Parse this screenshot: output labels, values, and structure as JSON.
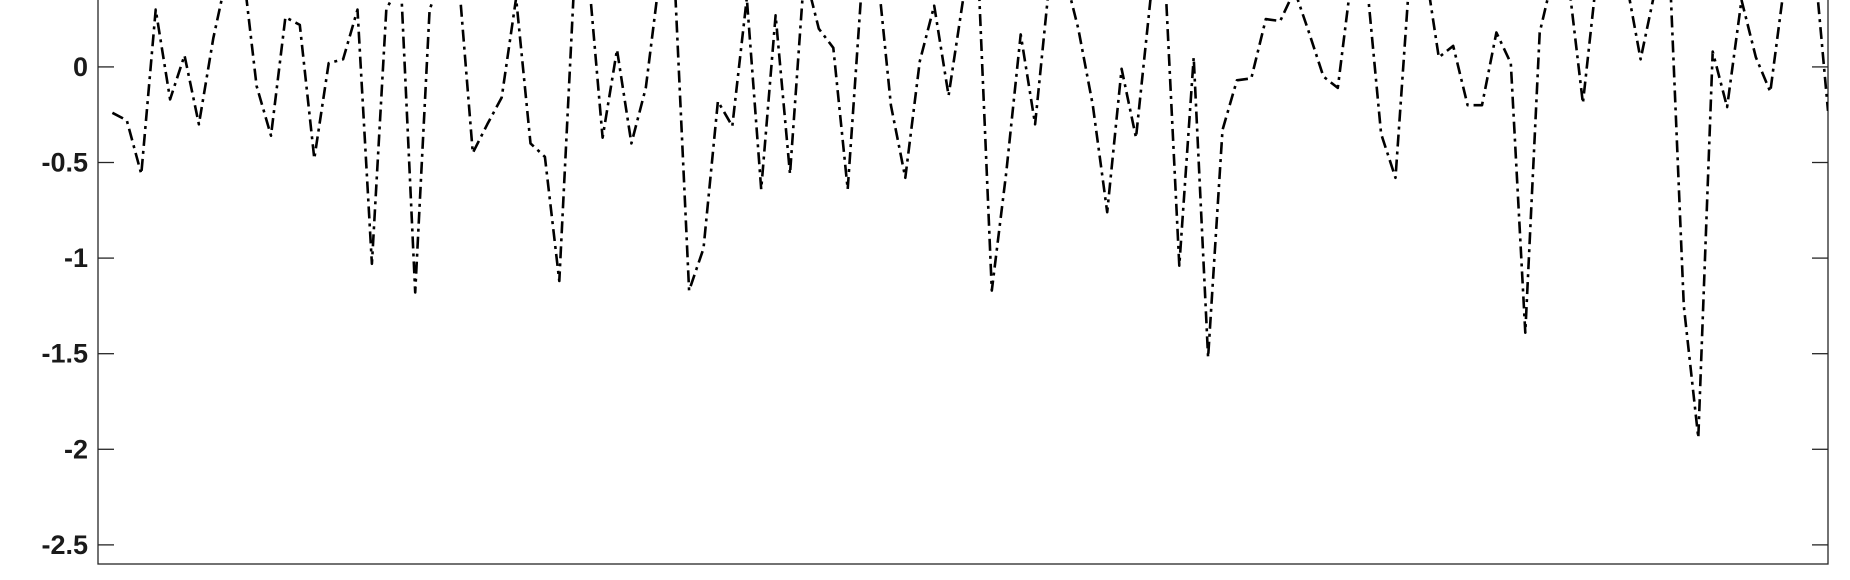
{
  "chart_data": {
    "type": "line",
    "title": "",
    "xlabel": "",
    "ylabel": "",
    "ylim": [
      -2.6,
      0.35
    ],
    "xlim": [
      0,
      120
    ],
    "grid": false,
    "yticks": [
      -2.5,
      -2,
      -1.5,
      -1,
      -0.5,
      0
    ],
    "ytick_labels": [
      "-2.5",
      "-2",
      "-1.5",
      "-1",
      "-0.5",
      "0"
    ],
    "line_style": "dash-dot",
    "line_color": "#000000",
    "series": [
      {
        "x": [
          1,
          2,
          3,
          4,
          5,
          6,
          7,
          8,
          9,
          10,
          11,
          12,
          13,
          14,
          15,
          16,
          17,
          18,
          19,
          20,
          21,
          22,
          23,
          24,
          25,
          26,
          27,
          28,
          29,
          30,
          31,
          32,
          33,
          34,
          35,
          36,
          37,
          38,
          39,
          40,
          41,
          42,
          43,
          44,
          45,
          46,
          47,
          48,
          49,
          50,
          51,
          52,
          53,
          54,
          55,
          56,
          57,
          58,
          59,
          60,
          61,
          62,
          63,
          64,
          65,
          66,
          67,
          68,
          69,
          70,
          71,
          72,
          73,
          74,
          75,
          76,
          77,
          78,
          79,
          80,
          81,
          82,
          83,
          84,
          85,
          86,
          87,
          88,
          89,
          90,
          91,
          92,
          93,
          94,
          95,
          96,
          97,
          98,
          99,
          100,
          101,
          102,
          103,
          104,
          105,
          106,
          107,
          108,
          109,
          110,
          111,
          112,
          113,
          114,
          115,
          116,
          117,
          118,
          119,
          120
        ],
        "values": [
          -0.24,
          -0.28,
          -0.56,
          0.3,
          -0.17,
          0.06,
          -0.3,
          0.15,
          0.5,
          0.55,
          -0.1,
          -0.36,
          0.26,
          0.22,
          -0.48,
          0.02,
          0.04,
          0.3,
          -1.03,
          0.3,
          0.45,
          -1.18,
          0.3,
          0.5,
          0.48,
          -0.45,
          -0.3,
          -0.16,
          0.36,
          -0.4,
          -0.47,
          -1.12,
          0.4,
          0.5,
          -0.37,
          0.09,
          -0.4,
          -0.11,
          0.5,
          0.45,
          -1.17,
          -0.95,
          -0.18,
          -0.31,
          0.36,
          -0.64,
          0.27,
          -0.56,
          0.5,
          0.2,
          0.1,
          -0.64,
          0.45,
          0.55,
          -0.2,
          -0.58,
          0.03,
          0.32,
          -0.15,
          0.35,
          0.6,
          -1.17,
          -0.55,
          0.17,
          -0.3,
          0.45,
          0.5,
          0.2,
          -0.2,
          -0.76,
          -0.01,
          -0.37,
          0.35,
          0.5,
          -1.04,
          0.05,
          -1.52,
          -0.33,
          -0.07,
          -0.06,
          0.25,
          0.24,
          0.4,
          0.18,
          -0.05,
          -0.11,
          0.5,
          0.45,
          -0.35,
          -0.58,
          0.5,
          0.55,
          0.05,
          0.11,
          -0.2,
          -0.2,
          0.18,
          0.02,
          -1.39,
          0.18,
          0.5,
          0.45,
          -0.19,
          0.5,
          0.55,
          0.45,
          0.04,
          0.4,
          0.55,
          -1.25,
          -1.94,
          0.08,
          -0.21,
          0.35,
          0.05,
          -0.13,
          0.45,
          0.5,
          0.6,
          -0.23
        ]
      }
    ]
  }
}
